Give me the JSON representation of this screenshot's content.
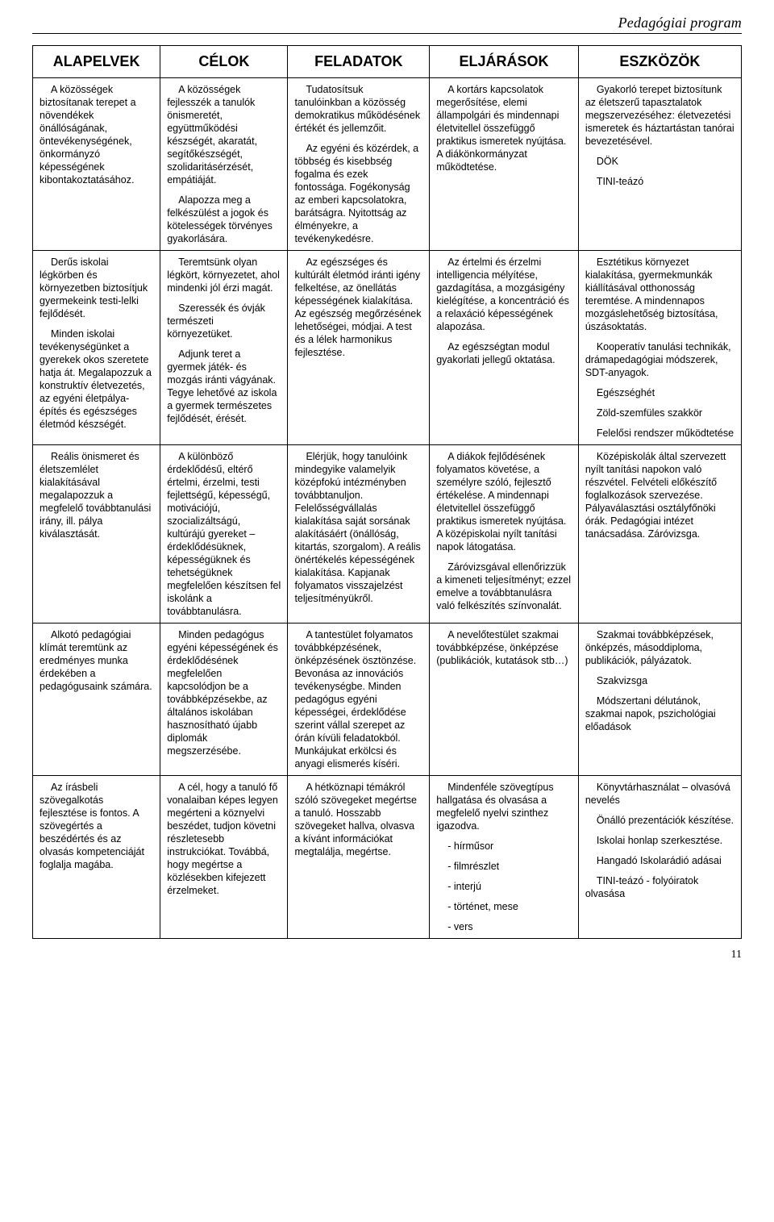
{
  "header": {
    "title": "Pedagógiai program"
  },
  "table": {
    "columns": [
      {
        "label": "ALAPELVEK",
        "width": "18%"
      },
      {
        "label": "CÉLOK",
        "width": "18%"
      },
      {
        "label": "FELADATOK",
        "width": "20%"
      },
      {
        "label": "ELJÁRÁSOK",
        "width": "21%"
      },
      {
        "label": "ESZKÖZÖK",
        "width": "23%"
      }
    ],
    "rows": [
      {
        "c0": [
          "A közösségek biztosítanak terepet a növendékek önállóságának, öntevékenységének, önkormányzó képességének kibontakoztatásához."
        ],
        "c1": [
          "A közösségek fejlesszék a tanulók önismeretét, együttműködési készségét, akaratát, segítőkészségét, szolidaritásérzését, empátiáját.",
          "Alapozza meg a felkészülést a jogok és kötelességek törvényes gyakorlására."
        ],
        "c2": [
          "Tudatosítsuk tanulóinkban a közösség demokratikus működésének értékét és jellemzőit.",
          "Az egyéni és közérdek, a többség és kisebbség fogalma és ezek fontossága. Fogékonyság az emberi kapcsolatokra, barátságra. Nyitottság az élményekre, a tevékenykedésre."
        ],
        "c3": [
          "A kortárs kapcsolatok megerősítése, elemi állampolgári és mindennapi életvitellel összefüggő praktikus ismeretek nyújtása. A diákönkormányzat működtetése."
        ],
        "c4": [
          "Gyakorló terepet biztosítunk az életszerű tapasztalatok megszervezéséhez: életvezetési ismeretek és háztartástan tanórai bevezetésével.",
          "DÖK",
          "TINI-teázó"
        ]
      },
      {
        "c0": [
          "Derűs iskolai légkörben és környezetben biztosítjuk gyermekeink testi-lelki fejlődését.",
          "Minden iskolai tevékenységünket a gyerekek okos szeretete hatja át. Megalapozzuk a konstruktív életvezetés, az egyéni életpálya-építés és egészséges életmód készségét."
        ],
        "c1": [
          "Teremtsünk olyan légkört, környezetet, ahol mindenki jól érzi magát.",
          "Szeressék és óvják természeti környezetüket.",
          "Adjunk teret a gyermek játék- és mozgás iránti vágyának. Tegye lehetővé az iskola a gyermek természetes fejlődését, érését."
        ],
        "c2": [
          "Az egészséges és kultúrált életmód iránti igény felkeltése, az önellátás képességének kialakítása. Az egészség megőrzésének lehetőségei, módjai. A test és a lélek harmonikus fejlesztése."
        ],
        "c3": [
          "Az értelmi és érzelmi intelligencia mélyítése, gazdagítása, a mozgásigény kielégítése, a koncentráció és a relaxáció képességének alapozása.",
          "Az egészségtan modul gyakorlati jellegű oktatása."
        ],
        "c4": [
          "Esztétikus környezet kialakítása, gyermekmunkák kiállításával otthonosság teremtése. A mindennapos mozgáslehetőség biztosítása, úszásoktatás.",
          "Kooperatív tanulási technikák, drámapedagógiai módszerek, SDT-anyagok.",
          "Egészséghét",
          "Zöld-szemfüles szakkör",
          "Felelősi rendszer működtetése"
        ]
      },
      {
        "c0": [
          "Reális önismeret és életszemlélet kialakításával megalapozzuk a megfelelő továbbtanulási irány, ill. pálya kiválasztását."
        ],
        "c1": [
          "A különböző érdeklődésű, eltérő értelmi, érzelmi, testi fejlettségű, képességű, motivációjú, szocializáltságú, kultúrájú gyereket – érdeklődésüknek, képességüknek és tehetségüknek megfelelően készítsen fel iskolánk a továbbtanulásra."
        ],
        "c2": [
          "Elérjük, hogy tanulóink mindegyike valamelyik középfokú intézményben továbbtanuljon. Felelősségvállalás kialakítása saját sorsának alakításáért (önállóság, kitartás, szorgalom). A reális önértékelés képességének kialakítása. Kapjanak folyamatos visszajelzést teljesítményükről."
        ],
        "c3": [
          "A diákok fejlődésének folyamatos követése, a személyre szóló, fejlesztő értékelése. A mindennapi életvitellel összefüggő praktikus ismeretek nyújtása. A középiskolai nyílt tanítási napok látogatása.",
          "Záróvizsgával ellenőrizzük a kimeneti teljesítményt; ezzel emelve a továbbtanulásra való felkészítés színvonalát."
        ],
        "c4": [
          "Középiskolák által szervezett nyílt tanítási napokon való részvétel. Felvételi előkészítő foglalkozások szervezése. Pályaválasztási osztályfőnöki órák. Pedagógiai intézet tanácsadása. Záróvizsga."
        ]
      },
      {
        "c0": [
          "Alkotó pedagógiai klímát teremtünk az eredményes munka érdekében a pedagógusaink számára."
        ],
        "c1": [
          "Minden pedagógus egyéni képességének és érdeklődésének megfelelően kapcsolódjon be a továbbképzésekbe, az általános iskolában hasznosítható újabb diplomák megszerzésébe."
        ],
        "c2": [
          "A tantestület folyamatos továbbképzésének, önképzésének ösztönzése. Bevonása az innovációs tevékenységbe. Minden pedagógus egyéni képességei, érdeklődése szerint vállal szerepet az órán kívüli feladatokból. Munkájukat erkölcsi és anyagi elismerés kíséri."
        ],
        "c3": [
          "A nevelőtestület szakmai továbbképzése, önképzése (publikációk, kutatások stb…)"
        ],
        "c4": [
          "Szakmai továbbképzések, önképzés, másoddiploma, publikációk, pályázatok.",
          "Szakvizsga",
          "Módszertani délutánok, szakmai napok, pszichológiai előadások"
        ]
      },
      {
        "c0": [
          "Az írásbeli szövegalkotás fejlesztése is fontos. A szövegértés a beszédértés és az olvasás kompetenciáját foglalja magába."
        ],
        "c1": [
          "A cél, hogy a tanuló fő vonalaiban képes legyen megérteni a köznyelvi beszédet, tudjon követni részletesebb instrukciókat. Továbbá, hogy megértse a közlésekben kifejezett érzelmeket."
        ],
        "c2": [
          "A hétköznapi témákról szóló szövegeket megértse a tanuló. Hosszabb szövegeket hallva, olvasva a kívánt információkat megtalálja, megértse."
        ],
        "c3": [
          "Mindenféle szövegtípus hallgatása és olvasása a megfelelő nyelvi szinthez igazodva.",
          " - hírműsor",
          " - filmrészlet",
          " - interjú",
          " - történet, mese",
          " - vers"
        ],
        "c4": [
          "Könyvtárhasználat – olvasóvá nevelés",
          "Önálló prezentációk készítése.",
          "Iskolai honlap szerkesztése.",
          "Hangadó Iskolarádió adásai",
          "TINI-teázó - folyóiratok olvasása"
        ]
      }
    ]
  },
  "footer": {
    "page": "11"
  },
  "style": {
    "body_font": "Arial",
    "header_font": "Times New Roman",
    "cell_fontsize": 12.5,
    "header_fontsize": 18,
    "border_color": "#000000",
    "background_color": "#ffffff"
  }
}
